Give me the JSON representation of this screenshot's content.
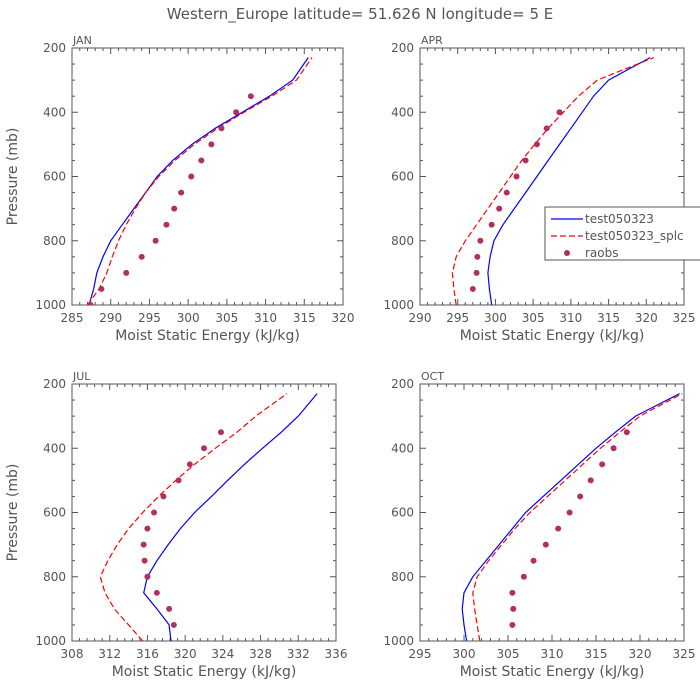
{
  "figure": {
    "title": "Western_Europe  latitude= 51.626 N longitude= 5 E"
  },
  "colors": {
    "test050323": "#0000ff",
    "test050323_splc": "#ff0000",
    "raobs": "#b03060",
    "axis": "#555555"
  },
  "legend": {
    "entries": [
      {
        "label": "test050323",
        "style": "solid",
        "color": "#0000ff"
      },
      {
        "label": "test050323_splc",
        "style": "dashed",
        "color": "#ff0000"
      },
      {
        "label": "raobs",
        "style": "dot",
        "color": "#b03060"
      }
    ]
  },
  "chart_data": [
    {
      "type": "line",
      "panel": "JAN",
      "xlabel": "Moist Static Energy (kJ/kg)",
      "ylabel": "Pressure (mb)",
      "xlim": [
        285,
        320
      ],
      "ylim": [
        1000,
        200
      ],
      "xticks": [
        285,
        290,
        295,
        300,
        305,
        310,
        315,
        320
      ],
      "yticks": [
        200,
        400,
        600,
        800,
        1000
      ],
      "series": [
        {
          "name": "test050323",
          "style": "solid",
          "x": [
            287.2,
            287.8,
            288.2,
            289.0,
            290.0,
            291.5,
            293.0,
            294.5,
            296.0,
            298.0,
            300.5,
            303.5,
            307.0,
            310.5,
            313.5,
            315.5
          ],
          "y": [
            1000,
            950,
            900,
            850,
            800,
            750,
            700,
            650,
            600,
            550,
            500,
            450,
            400,
            350,
            300,
            230
          ]
        },
        {
          "name": "test050323_splc",
          "style": "dashed",
          "x": [
            287.0,
            288.5,
            289.5,
            290.2,
            291.0,
            292.0,
            293.2,
            294.5,
            296.2,
            298.3,
            300.8,
            303.8,
            307.2,
            310.8,
            314.0,
            316.0
          ],
          "y": [
            1000,
            950,
            900,
            850,
            800,
            750,
            700,
            650,
            600,
            550,
            500,
            450,
            400,
            350,
            300,
            230
          ]
        },
        {
          "name": "raobs",
          "style": "dot",
          "x": [
            287.4,
            288.8,
            292.0,
            294.0,
            295.8,
            297.2,
            298.2,
            299.1,
            300.4,
            301.7,
            303.0,
            304.3,
            306.2,
            308.1
          ],
          "y": [
            1000,
            950,
            900,
            850,
            800,
            750,
            700,
            650,
            600,
            550,
            500,
            450,
            400,
            350
          ]
        }
      ]
    },
    {
      "type": "line",
      "panel": "APR",
      "xlabel": "Moist Static Energy (kJ/kg)",
      "ylabel": "",
      "xlim": [
        290,
        325
      ],
      "ylim": [
        1000,
        200
      ],
      "xticks": [
        290,
        295,
        300,
        305,
        310,
        315,
        320,
        325
      ],
      "yticks": [
        200,
        400,
        600,
        800,
        1000
      ],
      "series": [
        {
          "name": "test050323",
          "style": "solid",
          "x": [
            299.5,
            299.2,
            299.0,
            299.3,
            299.8,
            301.0,
            302.5,
            304.0,
            305.5,
            307.0,
            308.5,
            310.0,
            311.5,
            313.0,
            315.0,
            320.5
          ],
          "y": [
            1000,
            950,
            900,
            850,
            800,
            750,
            700,
            650,
            600,
            550,
            500,
            450,
            400,
            350,
            300,
            230
          ]
        },
        {
          "name": "test050323_splc",
          "style": "dashed",
          "x": [
            294.8,
            294.5,
            294.3,
            294.8,
            296.0,
            297.5,
            299.0,
            300.5,
            302.0,
            303.5,
            305.2,
            307.0,
            309.0,
            311.0,
            313.5,
            321.0
          ],
          "y": [
            1000,
            950,
            900,
            850,
            800,
            750,
            700,
            650,
            600,
            550,
            500,
            450,
            400,
            350,
            300,
            230
          ]
        },
        {
          "name": "raobs",
          "style": "dot",
          "x": [
            297.0,
            297.5,
            297.6,
            298.0,
            299.5,
            300.5,
            301.5,
            302.8,
            304.0,
            305.5,
            306.8,
            308.5
          ],
          "y": [
            950,
            900,
            850,
            800,
            750,
            700,
            650,
            600,
            550,
            500,
            450,
            400
          ]
        }
      ]
    },
    {
      "type": "line",
      "panel": "JUL",
      "xlabel": "Moist Static Energy (kJ/kg)",
      "ylabel": "Pressure (mb)",
      "xlim": [
        308,
        336
      ],
      "ylim": [
        1000,
        200
      ],
      "xticks": [
        308,
        312,
        316,
        320,
        324,
        328,
        332,
        336
      ],
      "yticks": [
        200,
        400,
        600,
        800,
        1000
      ],
      "series": [
        {
          "name": "test050323",
          "style": "solid",
          "x": [
            318.5,
            318.3,
            317.0,
            315.6,
            316.0,
            317.0,
            318.2,
            319.5,
            321.0,
            322.8,
            324.5,
            326.3,
            328.2,
            330.2,
            332.0,
            334.0
          ],
          "y": [
            1000,
            950,
            900,
            850,
            800,
            750,
            700,
            650,
            600,
            550,
            500,
            450,
            400,
            350,
            300,
            230
          ]
        },
        {
          "name": "test050323_splc",
          "style": "dashed",
          "x": [
            315.5,
            314.0,
            312.5,
            311.5,
            311.0,
            311.8,
            312.8,
            314.0,
            315.5,
            317.2,
            319.0,
            321.0,
            323.2,
            325.5,
            327.5,
            330.8
          ],
          "y": [
            1000,
            950,
            900,
            850,
            800,
            750,
            700,
            650,
            600,
            550,
            500,
            450,
            400,
            350,
            300,
            230
          ]
        },
        {
          "name": "raobs",
          "style": "dot",
          "x": [
            318.8,
            318.3,
            317.0,
            316.0,
            315.7,
            315.6,
            316.0,
            316.7,
            317.7,
            319.3,
            320.5,
            322.0,
            323.8
          ],
          "y": [
            950,
            900,
            850,
            800,
            750,
            700,
            650,
            600,
            550,
            500,
            450,
            400,
            350
          ]
        }
      ]
    },
    {
      "type": "line",
      "panel": "OCT",
      "xlabel": "Moist Static Energy (kJ/kg)",
      "ylabel": "",
      "xlim": [
        295,
        325
      ],
      "ylim": [
        1000,
        200
      ],
      "xticks": [
        295,
        300,
        305,
        310,
        315,
        320,
        325
      ],
      "yticks": [
        200,
        400,
        600,
        800,
        1000
      ],
      "series": [
        {
          "name": "test050323",
          "style": "solid",
          "x": [
            300.3,
            300.0,
            299.8,
            300.0,
            301.0,
            302.5,
            304.0,
            305.5,
            307.0,
            309.0,
            311.0,
            313.0,
            315.0,
            317.2,
            319.5,
            324.5
          ],
          "y": [
            1000,
            950,
            900,
            850,
            800,
            750,
            700,
            650,
            600,
            550,
            500,
            450,
            400,
            350,
            300,
            230
          ]
        },
        {
          "name": "test050323_splc",
          "style": "dashed",
          "x": [
            301.8,
            301.5,
            301.2,
            301.0,
            301.5,
            302.8,
            304.3,
            305.8,
            307.5,
            309.5,
            311.5,
            313.5,
            315.5,
            317.7,
            320.0,
            324.8
          ],
          "y": [
            1000,
            950,
            900,
            850,
            800,
            750,
            700,
            650,
            600,
            550,
            500,
            450,
            400,
            350,
            300,
            230
          ]
        },
        {
          "name": "raobs",
          "style": "dot",
          "x": [
            305.5,
            305.6,
            305.5,
            306.8,
            307.9,
            309.3,
            310.7,
            312.0,
            313.2,
            314.4,
            315.7,
            317.0,
            318.5
          ],
          "y": [
            950,
            900,
            850,
            800,
            750,
            700,
            650,
            600,
            550,
            500,
            450,
            400,
            350
          ]
        }
      ]
    }
  ]
}
